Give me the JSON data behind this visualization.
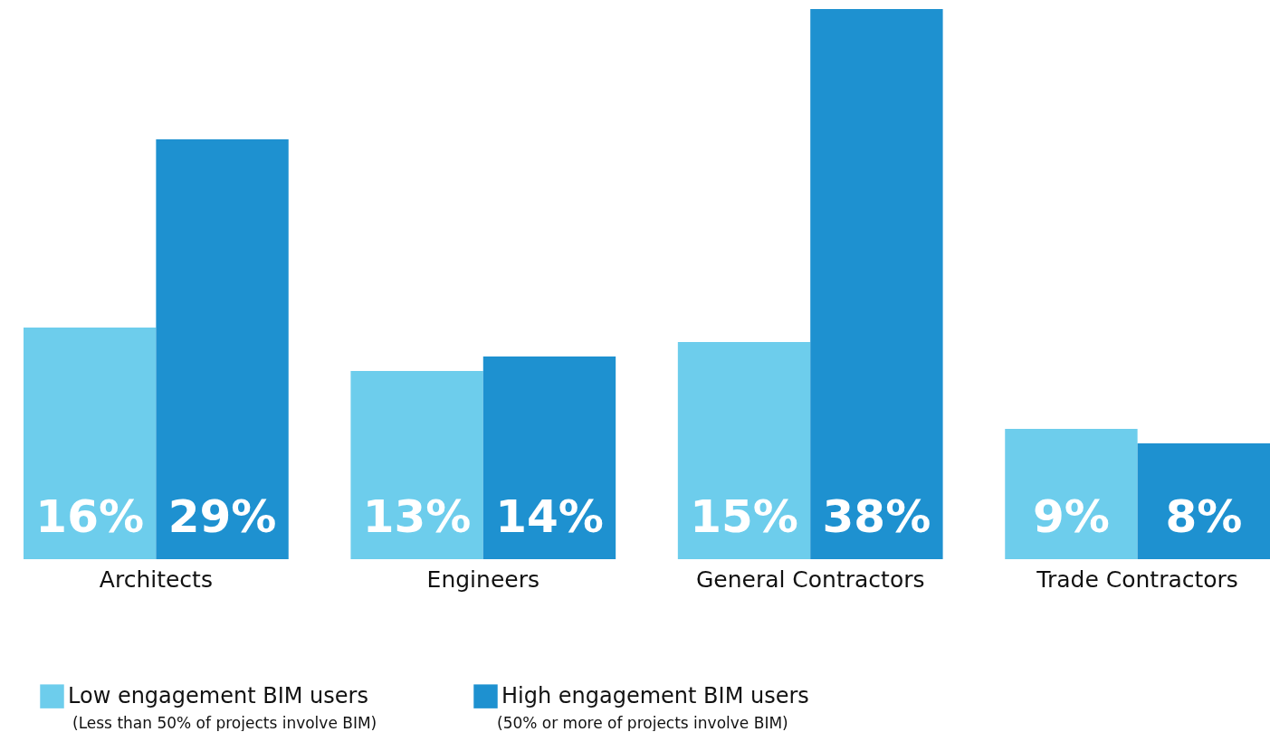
{
  "chart_data": {
    "type": "bar",
    "categories": [
      "Architects",
      "Engineers",
      "General Contractors",
      "Trade Contractors"
    ],
    "series": [
      {
        "name": "Low engagement BIM users",
        "color": "#6dcdec",
        "values": [
          16,
          13,
          15,
          9
        ],
        "value_labels": [
          "16%",
          "13%",
          "15%",
          "9%"
        ]
      },
      {
        "name": "High engagement BIM users",
        "color": "#1e91d0",
        "values": [
          29,
          14,
          38,
          8
        ],
        "value_labels": [
          "29%",
          "14%",
          "38%",
          "8%"
        ]
      }
    ],
    "legend": "bottom left",
    "annotations": [
      "(Less than 50% of projects involve BIM)",
      "(50% or more of projects involve BIM)"
    ]
  }
}
